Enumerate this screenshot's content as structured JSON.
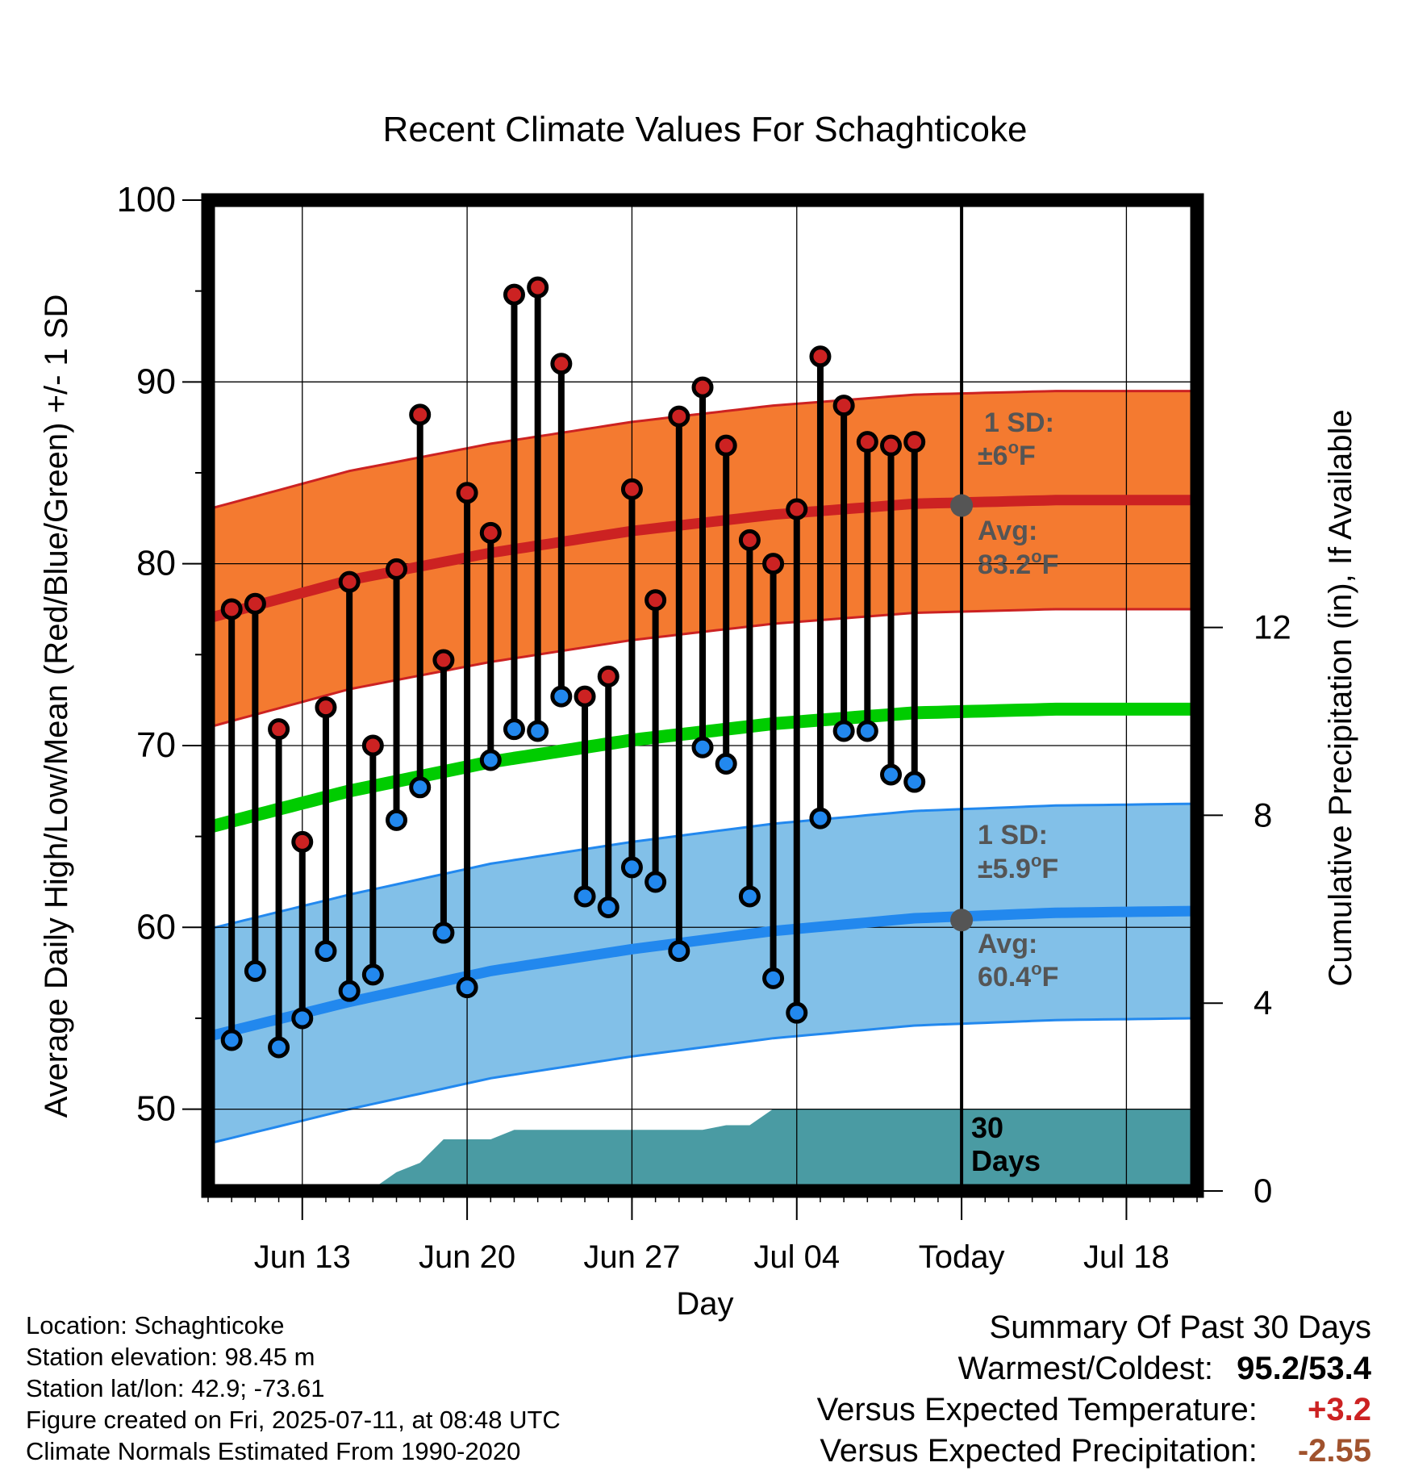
{
  "chart_data": {
    "type": "line",
    "title": "Recent Climate Values For Schaghticoke",
    "xlabel": "Day",
    "ylabel": "Average Daily High/Low/Mean (Red/Blue/Green) +/- 1 SD",
    "y2label": "Cumulative Precipitation (in), If Available",
    "ylim": [
      45.5,
      100
    ],
    "y2lim": [
      0,
      21.1
    ],
    "xlim": [
      "2025-06-09",
      "2025-07-21"
    ],
    "grid": true,
    "yticks": [
      50,
      60,
      70,
      80,
      90,
      100
    ],
    "y2ticks": [
      0,
      4,
      8,
      12
    ],
    "xticks": [
      {
        "date": "2025-06-13",
        "label": "Jun 13"
      },
      {
        "date": "2025-06-20",
        "label": "Jun 20"
      },
      {
        "date": "2025-06-27",
        "label": "Jun 27"
      },
      {
        "date": "2025-07-04",
        "label": "Jul 04"
      },
      {
        "date": "2025-07-11",
        "label": "Today"
      },
      {
        "date": "2025-07-18",
        "label": "Jul 18"
      }
    ],
    "today": "2025-07-11",
    "observed": [
      {
        "date": "2025-06-10",
        "high": 77.5,
        "low": 53.8
      },
      {
        "date": "2025-06-11",
        "high": 77.8,
        "low": 57.6
      },
      {
        "date": "2025-06-12",
        "high": 70.9,
        "low": 53.4
      },
      {
        "date": "2025-06-13",
        "high": 64.7,
        "low": 55.0
      },
      {
        "date": "2025-06-14",
        "high": 72.1,
        "low": 58.7
      },
      {
        "date": "2025-06-15",
        "high": 79.0,
        "low": 56.5
      },
      {
        "date": "2025-06-16",
        "high": 70.0,
        "low": 57.4
      },
      {
        "date": "2025-06-17",
        "high": 79.7,
        "low": 65.9
      },
      {
        "date": "2025-06-18",
        "high": 88.2,
        "low": 67.7
      },
      {
        "date": "2025-06-19",
        "high": 74.7,
        "low": 59.7
      },
      {
        "date": "2025-06-20",
        "high": 83.9,
        "low": 56.7
      },
      {
        "date": "2025-06-21",
        "high": 81.7,
        "low": 69.2
      },
      {
        "date": "2025-06-22",
        "high": 94.8,
        "low": 70.9
      },
      {
        "date": "2025-06-23",
        "high": 95.2,
        "low": 70.8
      },
      {
        "date": "2025-06-24",
        "high": 91.0,
        "low": 72.7
      },
      {
        "date": "2025-06-25",
        "high": 72.7,
        "low": 61.7
      },
      {
        "date": "2025-06-26",
        "high": 73.8,
        "low": 61.1
      },
      {
        "date": "2025-06-27",
        "high": 84.1,
        "low": 63.3
      },
      {
        "date": "2025-06-28",
        "high": 78.0,
        "low": 62.5
      },
      {
        "date": "2025-06-29",
        "high": 88.1,
        "low": 58.7
      },
      {
        "date": "2025-06-30",
        "high": 89.7,
        "low": 69.9
      },
      {
        "date": "2025-07-01",
        "high": 86.5,
        "low": 69.0
      },
      {
        "date": "2025-07-02",
        "high": 81.3,
        "low": 61.7
      },
      {
        "date": "2025-07-03",
        "high": 80.0,
        "low": 57.2
      },
      {
        "date": "2025-07-04",
        "high": 83.0,
        "low": 55.3
      },
      {
        "date": "2025-07-05",
        "high": 91.4,
        "low": 66.0
      },
      {
        "date": "2025-07-06",
        "high": 88.7,
        "low": 70.8
      },
      {
        "date": "2025-07-07",
        "high": 86.7,
        "low": 70.8
      },
      {
        "date": "2025-07-08",
        "high": 86.5,
        "low": 68.4
      },
      {
        "date": "2025-07-09",
        "high": 86.7,
        "low": 68.0
      }
    ],
    "normals": {
      "dates": [
        "2025-06-09",
        "2025-06-15",
        "2025-06-21",
        "2025-06-27",
        "2025-07-03",
        "2025-07-09",
        "2025-07-15",
        "2025-07-21"
      ],
      "high_avg": [
        77.0,
        79.1,
        80.6,
        81.8,
        82.7,
        83.3,
        83.5,
        83.5
      ],
      "high_sd": 6.0,
      "low_avg": [
        54.0,
        55.9,
        57.6,
        58.8,
        59.8,
        60.5,
        60.8,
        60.9
      ],
      "low_sd": 5.9,
      "mean_avg": [
        65.5,
        67.5,
        69.1,
        70.3,
        71.2,
        71.8,
        72.0,
        72.0
      ]
    },
    "precip_cumulative": {
      "dates": [
        "2025-06-09",
        "2025-06-13",
        "2025-06-16",
        "2025-06-17",
        "2025-06-18",
        "2025-06-19",
        "2025-06-21",
        "2025-06-22",
        "2025-06-30",
        "2025-07-01",
        "2025-07-02",
        "2025-07-03",
        "2025-07-09"
      ],
      "values": [
        0,
        0.05,
        0.05,
        0.4,
        0.6,
        1.1,
        1.1,
        1.3,
        1.3,
        1.4,
        1.4,
        1.75,
        1.75
      ]
    },
    "annotations": {
      "high_sd_label": [
        "1 SD:",
        "±6°F"
      ],
      "high_avg_label": [
        "Avg:",
        "83.2°F"
      ],
      "high_avg_value": 83.2,
      "low_sd_label": [
        "1 SD:",
        "±5.9°F"
      ],
      "low_avg_label": [
        "Avg:",
        "60.4°F"
      ],
      "low_avg_value": 60.4,
      "precip_label": [
        "30",
        "Days"
      ]
    },
    "colors": {
      "high": "#cc2222",
      "high_band": "#f47a30",
      "low": "#2288ee",
      "low_band": "#82c0e8",
      "mean": "#00cc00",
      "precip": "#4a9ba3",
      "annotation": "#555555"
    }
  },
  "location_info": [
    "Location: Schaghticoke",
    "Station elevation: 98.45 m",
    "Station lat/lon: 42.9; -73.61",
    "Figure created on Fri, 2025-07-11, at 08:48 UTC",
    "Climate Normals Estimated From 1990-2020"
  ],
  "summary": {
    "title": "Summary Of Past 30 Days",
    "warmest_coldest_label": "Warmest/Coldest:",
    "warmest_coldest_value": "95.2/53.4",
    "temp_label": "Versus Expected Temperature:",
    "temp_value": "+3.2",
    "temp_color": "#cc2222",
    "precip_label": "Versus Expected Precipitation:",
    "precip_value": "-2.55",
    "precip_color": "#a0522d"
  }
}
